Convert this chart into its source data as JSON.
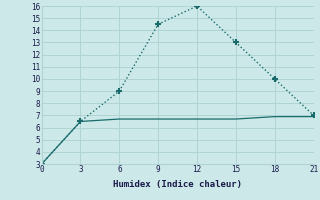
{
  "line1_x": [
    0,
    3,
    6,
    9,
    12,
    15,
    18,
    21
  ],
  "line1_y": [
    3,
    6.5,
    9,
    14.5,
    16,
    13,
    10,
    7
  ],
  "line2_x": [
    0,
    3,
    6,
    9,
    12,
    15,
    18,
    21
  ],
  "line2_y": [
    3,
    6.5,
    6.7,
    6.7,
    6.7,
    6.7,
    6.9,
    6.9
  ],
  "line_color": "#1a6b6b",
  "bg_color": "#cce8e8",
  "grid_color": "#b0d4d4",
  "xlabel": "Humidex (Indice chaleur)",
  "xlim": [
    0,
    21
  ],
  "ylim": [
    3,
    16
  ],
  "xticks": [
    0,
    3,
    6,
    9,
    12,
    15,
    18,
    21
  ],
  "yticks": [
    3,
    4,
    5,
    6,
    7,
    8,
    9,
    10,
    11,
    12,
    13,
    14,
    15,
    16
  ]
}
